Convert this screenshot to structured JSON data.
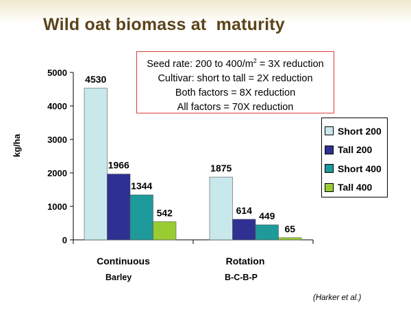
{
  "title": "Wild oat biomass at  maturity",
  "notes": {
    "line1_pre": "Seed rate: 200 to 400/m",
    "line1_sup": "2",
    "line1_post": " = 3X reduction",
    "line2": "Cultivar: short to tall = 2X reduction",
    "line3": "Both factors = 8X reduction",
    "line4": "All factors = 70X reduction"
  },
  "category_sublabels": [
    "Barley",
    "B-C-B-P"
  ],
  "citation": "(Harker et al.)",
  "chart_data": {
    "type": "bar",
    "ylabel": "kg/ha",
    "ylim": [
      0,
      5000
    ],
    "yticks": [
      0,
      1000,
      2000,
      3000,
      4000,
      5000
    ],
    "grid": false,
    "legend_position": "right",
    "categories": [
      "Continuous",
      "Rotation"
    ],
    "series": [
      {
        "name": "Short 200",
        "color": "#c8e8ec",
        "values": [
          4530,
          1875
        ]
      },
      {
        "name": "Tall 200",
        "color": "#2e3192",
        "values": [
          1966,
          614
        ]
      },
      {
        "name": "Short 400",
        "color": "#1f9a9a",
        "values": [
          1344,
          449
        ]
      },
      {
        "name": "Tall 400",
        "color": "#99cc33",
        "values": [
          542,
          65
        ]
      }
    ],
    "data_labels": [
      [
        "4530",
        "1875"
      ],
      [
        "1966",
        "614"
      ],
      [
        "1344",
        "449"
      ],
      [
        "542",
        "65"
      ]
    ]
  }
}
